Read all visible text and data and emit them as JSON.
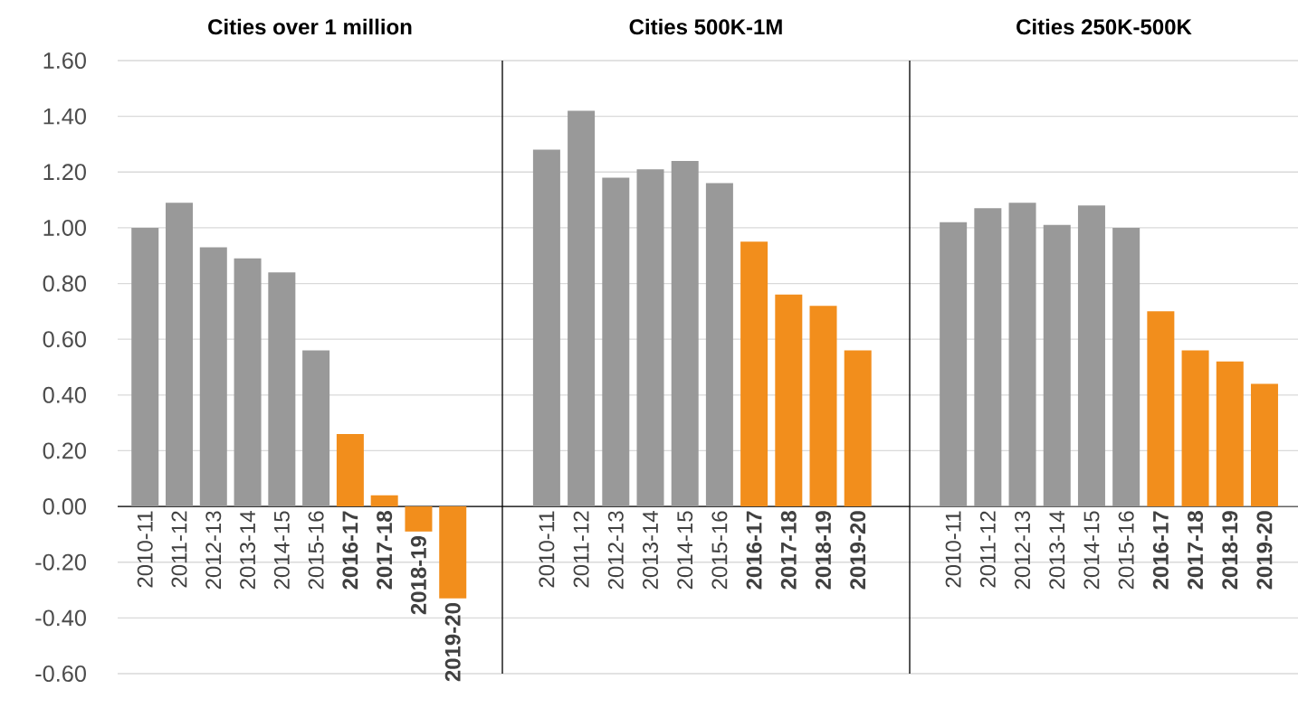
{
  "chart_data": [
    {
      "type": "bar",
      "title": "Cities over 1 million",
      "categories": [
        "2010-11",
        "2011-12",
        "2012-13",
        "2013-14",
        "2014-15",
        "2015-16",
        "**2016-17**",
        "**2017-18**",
        "**2018-19**",
        "**2019-20**"
      ],
      "values": [
        1.0,
        1.09,
        0.93,
        0.89,
        0.84,
        0.56,
        0.26,
        0.04,
        -0.09,
        -0.33
      ],
      "colors": [
        "#999999",
        "#999999",
        "#999999",
        "#999999",
        "#999999",
        "#999999",
        "#f28e1c",
        "#f28e1c",
        "#f28e1c",
        "#f28e1c"
      ],
      "ylim": [
        -0.6,
        1.6
      ],
      "yticks": [
        {
          "value": -0.6,
          "label": "-0.60"
        },
        {
          "value": -0.4,
          "label": "-0.40"
        },
        {
          "value": -0.2,
          "label": "-0.20"
        },
        {
          "value": 0,
          "label": "0.00"
        },
        {
          "value": 0.2,
          "label": "0.20"
        },
        {
          "value": 0.4,
          "label": "0.40"
        },
        {
          "value": 0.6,
          "label": "0.60"
        },
        {
          "value": 0.8,
          "label": "0.80"
        },
        {
          "value": 1.0,
          "label": "1.00"
        },
        {
          "value": 1.2,
          "label": "1.20"
        },
        {
          "value": 1.4,
          "label": "1.40"
        },
        {
          "value": 1.6,
          "label": "1.60"
        }
      ],
      "grid": "y"
    },
    {
      "type": "bar",
      "title": "Cities 500K-1M",
      "categories": [
        "2010-11",
        "2011-12",
        "2012-13",
        "2013-14",
        "2014-15",
        "2015-16",
        "**2016-17**",
        "**2017-18**",
        "**2018-19**",
        "**2019-20**"
      ],
      "values": [
        1.28,
        1.42,
        1.18,
        1.21,
        1.24,
        1.16,
        0.95,
        0.76,
        0.72,
        0.56
      ],
      "colors": [
        "#999999",
        "#999999",
        "#999999",
        "#999999",
        "#999999",
        "#999999",
        "#f28e1c",
        "#f28e1c",
        "#f28e1c",
        "#f28e1c"
      ],
      "ylim": [
        -0.6,
        1.6
      ],
      "yticks": [
        {
          "value": -0.6,
          "label": null
        },
        {
          "value": -0.4,
          "label": null
        },
        {
          "value": -0.2,
          "label": null
        },
        {
          "value": 0,
          "label": null
        },
        {
          "value": 0.2,
          "label": null
        },
        {
          "value": 0.4,
          "label": null
        },
        {
          "value": 0.6,
          "label": null
        },
        {
          "value": 0.8,
          "label": null
        },
        {
          "value": 1.0,
          "label": null
        },
        {
          "value": 1.2,
          "label": null
        },
        {
          "value": 1.4,
          "label": null
        },
        {
          "value": 1.6,
          "label": null
        }
      ],
      "grid": "y",
      "tick_labels": "x"
    },
    {
      "type": "bar",
      "title": "Cities 250K-500K",
      "categories": [
        "2010-11",
        "2011-12",
        "2012-13",
        "2013-14",
        "2014-15",
        "2015-16",
        "**2016-17**",
        "**2017-18**",
        "**2018-19**",
        "**2019-20**"
      ],
      "values": [
        1.02,
        1.07,
        1.09,
        1.01,
        1.08,
        1.0,
        0.7,
        0.56,
        0.52,
        0.44
      ],
      "colors": [
        "#999999",
        "#999999",
        "#999999",
        "#999999",
        "#999999",
        "#999999",
        "#f28e1c",
        "#f28e1c",
        "#f28e1c",
        "#f28e1c"
      ],
      "ylim": [
        -0.6,
        1.6
      ],
      "yticks": [
        {
          "value": -0.6,
          "label": null
        },
        {
          "value": -0.4,
          "label": null
        },
        {
          "value": -0.2,
          "label": null
        },
        {
          "value": 0,
          "label": null
        },
        {
          "value": 0.2,
          "label": null
        },
        {
          "value": 0.4,
          "label": null
        },
        {
          "value": 0.6,
          "label": null
        },
        {
          "value": 0.8,
          "label": null
        },
        {
          "value": 1.0,
          "label": null
        },
        {
          "value": 1.2,
          "label": null
        },
        {
          "value": 1.4,
          "label": null
        },
        {
          "value": 1.6,
          "label": null
        }
      ],
      "grid": "y",
      "tick_labels": "x"
    }
  ]
}
